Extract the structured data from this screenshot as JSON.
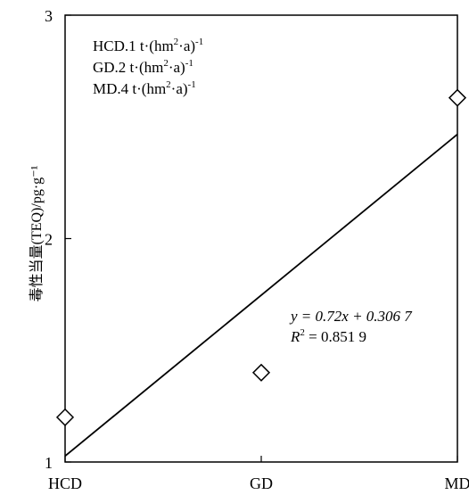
{
  "chart_data": {
    "type": "scatter",
    "title": "",
    "xlabel": "",
    "ylabel": "毒性当量(TEQ)/pg·g⁻¹",
    "categories": [
      "HCD",
      "GD",
      "MD"
    ],
    "x_positions": [
      1,
      2,
      3
    ],
    "y_ticks": [
      "1",
      "2",
      "3"
    ],
    "ylim": [
      1,
      3
    ],
    "xlim": [
      1,
      3
    ],
    "series": [
      {
        "values": [
          1.2,
          1.4,
          2.63
        ],
        "marker": "diamond-open"
      }
    ],
    "trendline": {
      "slope": 0.72,
      "intercept": 0.3067
    },
    "legend": {
      "placement": "top-left",
      "entries": [
        {
          "label": "HCD.1 t·(hm",
          "sup1": "2",
          "mid": "·a)",
          "sup2": "-1"
        },
        {
          "label": "GD.2 t·(hm",
          "sup1": "2",
          "mid": "·a)",
          "sup2": "-1"
        },
        {
          "label": "MD.4 t·(hm",
          "sup1": "2",
          "mid": "·a)",
          "sup2": "-1"
        }
      ]
    },
    "annotation": {
      "equation": "y = 0.72x + 0.306 7",
      "r2_label": "R",
      "r2_sup": "2",
      "r2_value": " = 0.851 9"
    },
    "grid": false
  }
}
